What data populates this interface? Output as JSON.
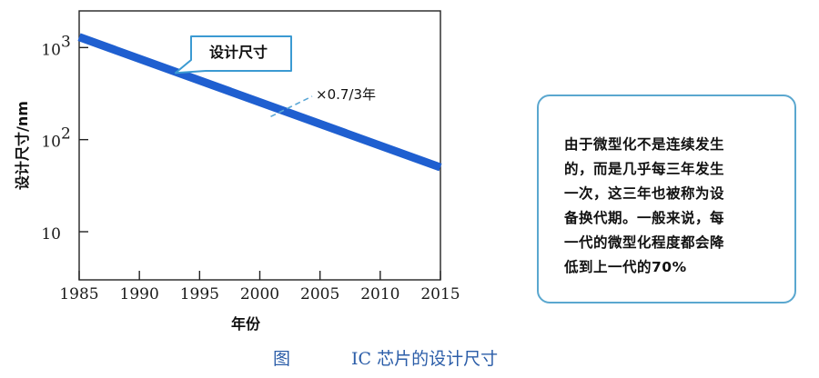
{
  "chart_data": {
    "type": "line",
    "x": [
      1985,
      2015
    ],
    "series": [
      {
        "values": [
          1300,
          50
        ],
        "color": "#1f5fd0"
      }
    ],
    "xlabel": "年份",
    "ylabel": "设计尺寸/nm",
    "xlim": [
      1985,
      2015
    ],
    "ylim": [
      3,
      2500
    ],
    "yscale": "log",
    "xticks": [
      1985,
      1990,
      1995,
      2000,
      2005,
      2010,
      2015
    ],
    "yticks": [
      {
        "value": 1000,
        "base": "10",
        "exp": "3"
      },
      {
        "value": 100,
        "base": "10",
        "exp": "2"
      },
      {
        "value": 10,
        "base": "10",
        "exp": ""
      }
    ],
    "grid": false,
    "annotations": {
      "callout": "设计尺寸",
      "rate": "×0.7/3年",
      "rate_point": {
        "x": 2000,
        "y": 170
      },
      "callout_point": {
        "x": 1993,
        "y": 530
      }
    }
  },
  "note": {
    "lines": [
      "由于微型化不是连续发生",
      "的，而是几乎每三年发生",
      "一次，这三年也被称为设",
      " 备换代期。一般来说，每",
      "一代的微型化程度都会降",
      "低到上一代的70%"
    ]
  },
  "caption": {
    "label": "图",
    "title": "IC 芯片的设计尺寸"
  }
}
